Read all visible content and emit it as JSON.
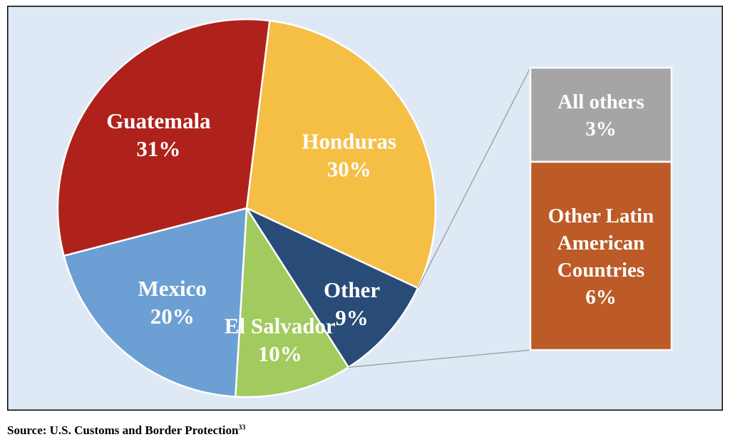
{
  "chart_data": {
    "type": "pie",
    "title": "",
    "slices": [
      {
        "label": "Honduras",
        "value": 30,
        "value_label": "30%",
        "color": "#F5BE45"
      },
      {
        "label": "Other",
        "value": 9,
        "value_label": "9%",
        "color": "#284B78"
      },
      {
        "label": "El Salvador",
        "value": 10,
        "value_label": "10%",
        "color": "#A1CB5E"
      },
      {
        "label": "Mexico",
        "value": 20,
        "value_label": "20%",
        "color": "#6C9FD3"
      },
      {
        "label": "Guatemala",
        "value": 31,
        "value_label": "31%",
        "color": "#AF221B"
      }
    ],
    "breakdown_of": "Other",
    "breakdown": [
      {
        "label_lines": [
          "All others"
        ],
        "value": 3,
        "value_label": "3%",
        "color": "#A5A5A5"
      },
      {
        "label_lines": [
          "Other Latin",
          "American",
          "Countries"
        ],
        "value": 6,
        "value_label": "6%",
        "color": "#BC5B27"
      }
    ],
    "background_color": "#DEE9F5",
    "border_color": "#000000",
    "connector_color": "#9B9B9B"
  },
  "source": {
    "text": "Source: U.S. Customs and Border Protection",
    "footnote": "33"
  }
}
